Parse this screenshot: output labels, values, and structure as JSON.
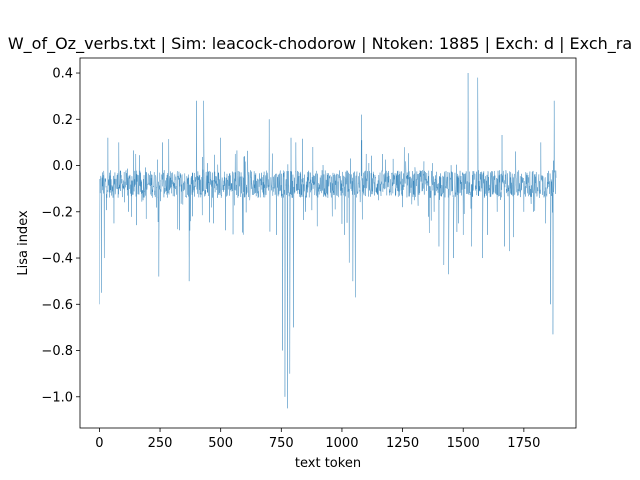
{
  "chart_data": {
    "type": "line",
    "title": "W_of_Oz_verbs.txt | Sim: leacock-chodorow | Ntoken: 1885 | Exch: d | Exch_ra",
    "xlabel": "text token",
    "ylabel": "Lisa index",
    "xlim": [
      -80,
      1965
    ],
    "ylim": [
      -1.135,
      0.465
    ],
    "x_ticks": [
      0,
      250,
      500,
      750,
      1000,
      1250,
      1500,
      1750
    ],
    "y_ticks": [
      0.4,
      0.2,
      0.0,
      -0.2,
      -0.4,
      -0.6,
      -0.8,
      -1.0
    ],
    "x_tick_labels": [
      "0",
      "250",
      "500",
      "750",
      "1000",
      "1250",
      "1500",
      "1750"
    ],
    "y_tick_labels": [
      "0.4",
      "0.2",
      "0.0",
      "−0.2",
      "−0.4",
      "−0.6",
      "−0.8",
      "−1.0"
    ],
    "grid": false,
    "legend": "none",
    "series": [
      {
        "color": "#1f77b4",
        "n_points": 1885,
        "baseline": -0.08,
        "noise_amplitude": 0.06,
        "spikes": [
          {
            "x": 0,
            "y": -0.6
          },
          {
            "x": 8,
            "y": -0.55
          },
          {
            "x": 20,
            "y": -0.4
          },
          {
            "x": 35,
            "y": 0.12
          },
          {
            "x": 60,
            "y": -0.25
          },
          {
            "x": 80,
            "y": 0.1
          },
          {
            "x": 120,
            "y": -0.2
          },
          {
            "x": 150,
            "y": 0.05
          },
          {
            "x": 180,
            "y": -0.15
          },
          {
            "x": 245,
            "y": -0.48
          },
          {
            "x": 260,
            "y": 0.1
          },
          {
            "x": 330,
            "y": -0.28
          },
          {
            "x": 370,
            "y": -0.5
          },
          {
            "x": 400,
            "y": 0.28
          },
          {
            "x": 430,
            "y": 0.28
          },
          {
            "x": 470,
            "y": -0.25
          },
          {
            "x": 500,
            "y": 0.12
          },
          {
            "x": 520,
            "y": -0.28
          },
          {
            "x": 560,
            "y": 0.05
          },
          {
            "x": 620,
            "y": -0.15
          },
          {
            "x": 700,
            "y": 0.2
          },
          {
            "x": 730,
            "y": -0.3
          },
          {
            "x": 755,
            "y": -0.8
          },
          {
            "x": 765,
            "y": -1.0
          },
          {
            "x": 775,
            "y": -1.05
          },
          {
            "x": 785,
            "y": -0.9
          },
          {
            "x": 790,
            "y": 0.12
          },
          {
            "x": 800,
            "y": -0.7
          },
          {
            "x": 810,
            "y": 0.1
          },
          {
            "x": 850,
            "y": -0.2
          },
          {
            "x": 880,
            "y": 0.08
          },
          {
            "x": 960,
            "y": -0.22
          },
          {
            "x": 1010,
            "y": -0.3
          },
          {
            "x": 1030,
            "y": -0.42
          },
          {
            "x": 1045,
            "y": -0.5
          },
          {
            "x": 1055,
            "y": -0.57
          },
          {
            "x": 1080,
            "y": 0.22
          },
          {
            "x": 1100,
            "y": 0.05
          },
          {
            "x": 1150,
            "y": -0.15
          },
          {
            "x": 1250,
            "y": -0.18
          },
          {
            "x": 1300,
            "y": -0.15
          },
          {
            "x": 1380,
            "y": -0.2
          },
          {
            "x": 1400,
            "y": -0.35
          },
          {
            "x": 1420,
            "y": -0.43
          },
          {
            "x": 1440,
            "y": -0.47
          },
          {
            "x": 1460,
            "y": -0.4
          },
          {
            "x": 1480,
            "y": -0.25
          },
          {
            "x": 1500,
            "y": -0.3
          },
          {
            "x": 1520,
            "y": 0.4
          },
          {
            "x": 1535,
            "y": -0.35
          },
          {
            "x": 1560,
            "y": 0.38
          },
          {
            "x": 1580,
            "y": -0.4
          },
          {
            "x": 1600,
            "y": -0.3
          },
          {
            "x": 1640,
            "y": -0.2
          },
          {
            "x": 1670,
            "y": -0.35
          },
          {
            "x": 1690,
            "y": -0.37
          },
          {
            "x": 1720,
            "y": -0.1
          },
          {
            "x": 1750,
            "y": -0.2
          },
          {
            "x": 1790,
            "y": -0.2
          },
          {
            "x": 1820,
            "y": 0.1
          },
          {
            "x": 1840,
            "y": -0.25
          },
          {
            "x": 1860,
            "y": -0.6
          },
          {
            "x": 1870,
            "y": -0.73
          },
          {
            "x": 1875,
            "y": 0.28
          },
          {
            "x": 1884,
            "y": -0.05
          }
        ]
      }
    ]
  }
}
